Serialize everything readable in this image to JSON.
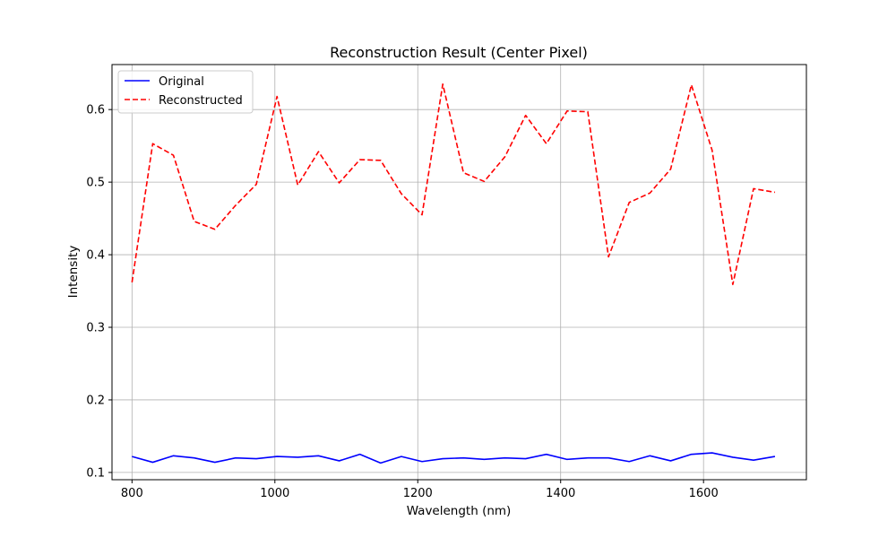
{
  "chart_data": {
    "type": "line",
    "title": "Reconstruction Result (Center Pixel)",
    "xlabel": "Wavelength (nm)",
    "ylabel": "Intensity",
    "xlim": [
      772,
      1744
    ],
    "ylim": [
      0.09,
      0.662
    ],
    "xticks": [
      800,
      1000,
      1200,
      1400,
      1600
    ],
    "yticks": [
      0.1,
      0.2,
      0.3,
      0.4,
      0.5,
      0.6
    ],
    "grid": true,
    "legend_position": "upper-left",
    "x": [
      800,
      829,
      858,
      887,
      916,
      945,
      974,
      1003,
      1032,
      1061,
      1090,
      1119,
      1148,
      1177,
      1206,
      1235,
      1264,
      1293,
      1322,
      1351,
      1380,
      1409,
      1438,
      1467,
      1496,
      1525,
      1554,
      1583,
      1612,
      1641,
      1670,
      1700
    ],
    "series": [
      {
        "name": "Original",
        "color": "#0000ff",
        "style": "solid",
        "values": [
          0.122,
          0.114,
          0.123,
          0.12,
          0.114,
          0.12,
          0.119,
          0.122,
          0.121,
          0.123,
          0.116,
          0.125,
          0.113,
          0.122,
          0.115,
          0.119,
          0.12,
          0.118,
          0.12,
          0.119,
          0.125,
          0.118,
          0.12,
          0.12,
          0.115,
          0.123,
          0.116,
          0.125,
          0.127,
          0.121,
          0.117,
          0.122
        ]
      },
      {
        "name": "Reconstructed",
        "color": "#ff0000",
        "style": "dashed",
        "values": [
          0.362,
          0.553,
          0.537,
          0.446,
          0.435,
          0.468,
          0.497,
          0.618,
          0.496,
          0.542,
          0.499,
          0.531,
          0.53,
          0.484,
          0.455,
          0.635,
          0.513,
          0.501,
          0.535,
          0.592,
          0.553,
          0.598,
          0.597,
          0.397,
          0.472,
          0.485,
          0.518,
          0.634,
          0.544,
          0.359,
          0.491,
          0.486
        ]
      }
    ]
  }
}
